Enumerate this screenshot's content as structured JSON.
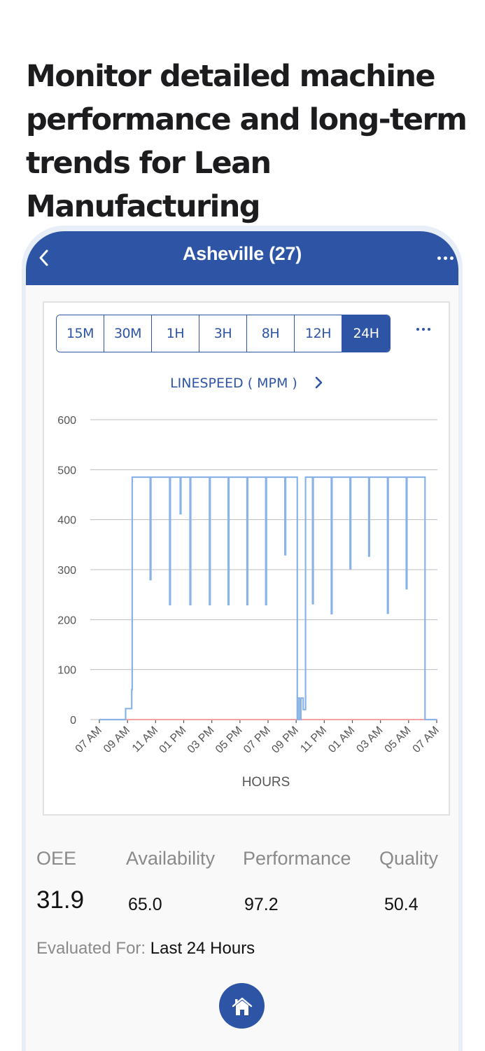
{
  "headline": "Monitor detailed machine performance and long-term trends for Lean Manufacturing",
  "app": {
    "title": "Asheville (27)",
    "back_icon": "chevron-left-icon",
    "more_icon": "more-horizontal-icon",
    "accent_color": "#2e55a5"
  },
  "range_selector": {
    "options": [
      "15M",
      "30M",
      "1H",
      "3H",
      "8H",
      "12H",
      "24H"
    ],
    "selected": "24H",
    "more_icon": "more-horizontal-icon"
  },
  "metric": {
    "title": "LINESPEED ( MPM )",
    "next_icon": "chevron-right-icon"
  },
  "chart_data": {
    "type": "line",
    "title": "LINESPEED ( MPM )",
    "xlabel": "HOURS",
    "ylabel": "",
    "ylim": [
      0,
      600
    ],
    "yticks": [
      0,
      100,
      200,
      300,
      400,
      500,
      600
    ],
    "xticks": [
      "07 AM",
      "09 AM",
      "11 AM",
      "01 PM",
      "03 PM",
      "05 PM",
      "07 PM",
      "09 PM",
      "11 PM",
      "01 AM",
      "03 AM",
      "05 AM",
      "07 AM"
    ],
    "grid": true,
    "legend": "none",
    "series": [
      {
        "name": "Linespeed",
        "color": "#8ab4e8",
        "step": true,
        "points": [
          {
            "t": "07:00",
            "v": 0
          },
          {
            "t": "08:50",
            "v": 0
          },
          {
            "t": "08:52",
            "v": 22
          },
          {
            "t": "09:18",
            "v": 60
          },
          {
            "t": "09:20",
            "v": 485
          },
          {
            "t": "10:37",
            "v": 280
          },
          {
            "t": "10:40",
            "v": 485
          },
          {
            "t": "12:00",
            "v": 230
          },
          {
            "t": "12:03",
            "v": 485
          },
          {
            "t": "12:45",
            "v": 412
          },
          {
            "t": "12:48",
            "v": 485
          },
          {
            "t": "13:27",
            "v": 230
          },
          {
            "t": "13:30",
            "v": 485
          },
          {
            "t": "14:50",
            "v": 230
          },
          {
            "t": "14:53",
            "v": 485
          },
          {
            "t": "16:10",
            "v": 230
          },
          {
            "t": "16:13",
            "v": 485
          },
          {
            "t": "17:30",
            "v": 230
          },
          {
            "t": "17:33",
            "v": 485
          },
          {
            "t": "18:50",
            "v": 230
          },
          {
            "t": "18:53",
            "v": 485
          },
          {
            "t": "20:12",
            "v": 330
          },
          {
            "t": "20:15",
            "v": 485
          },
          {
            "t": "21:05",
            "v": 0
          },
          {
            "t": "21:08",
            "v": 43
          },
          {
            "t": "21:15",
            "v": 0
          },
          {
            "t": "21:20",
            "v": 43
          },
          {
            "t": "21:30",
            "v": 20
          },
          {
            "t": "21:40",
            "v": 485
          },
          {
            "t": "22:10",
            "v": 232
          },
          {
            "t": "22:13",
            "v": 485
          },
          {
            "t": "23:30",
            "v": 212
          },
          {
            "t": "23:33",
            "v": 485
          },
          {
            "t": "00:50",
            "v": 302
          },
          {
            "t": "00:53",
            "v": 485
          },
          {
            "t": "02:10",
            "v": 327
          },
          {
            "t": "02:13",
            "v": 485
          },
          {
            "t": "03:30",
            "v": 213
          },
          {
            "t": "03:33",
            "v": 485
          },
          {
            "t": "04:50",
            "v": 262
          },
          {
            "t": "04:53",
            "v": 485
          },
          {
            "t": "06:10",
            "v": 0
          },
          {
            "t": "07:00",
            "v": 0
          }
        ]
      },
      {
        "name": "Baseline",
        "color": "#f2a0a0",
        "points": [
          {
            "t": "07:00",
            "v": 0
          },
          {
            "t": "07:00+1d",
            "v": 0
          }
        ]
      }
    ]
  },
  "kpis": {
    "oee": {
      "label": "OEE",
      "value": "31.9"
    },
    "availability": {
      "label": "Availability",
      "value": "65.0"
    },
    "performance": {
      "label": "Performance",
      "value": "97.2"
    },
    "quality": {
      "label": "Quality",
      "value": "50.4"
    }
  },
  "evaluated": {
    "label": "Evaluated For:",
    "value": "Last 24 Hours"
  },
  "bottom_nav": {
    "home_icon": "home-icon"
  }
}
